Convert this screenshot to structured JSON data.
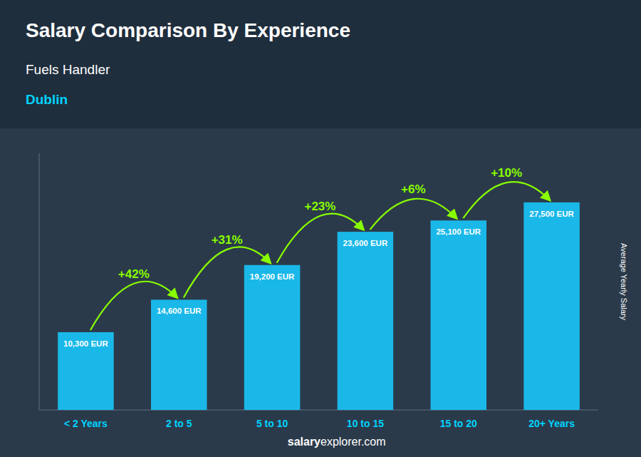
{
  "chart_data": {
    "type": "bar",
    "title": "Salary Comparison By Experience",
    "subtitle": "Fuels Handler",
    "ylabel": "Average Yearly Salary",
    "categories": [
      "< 2 Years",
      "2 to 5",
      "5 to 10",
      "10 to 15",
      "15 to 20",
      "20+ Years"
    ],
    "values": [
      10300,
      14600,
      19200,
      23600,
      25100,
      27500
    ],
    "value_labels": [
      "10,300 EUR",
      "14,600 EUR",
      "19,200 EUR",
      "23,600 EUR",
      "25,100 EUR",
      "27,500 EUR"
    ],
    "data_labels": true,
    "color": "#1ab8e8",
    "ylim": [
      0,
      34000
    ],
    "tick_labels": "x",
    "grid": false,
    "annotations": {
      "city": "Dublin",
      "changes": [
        "+42%",
        "+31%",
        "+23%",
        "+6%",
        "+10%"
      ],
      "footer": [
        "salary",
        "explorer.com"
      ]
    }
  }
}
